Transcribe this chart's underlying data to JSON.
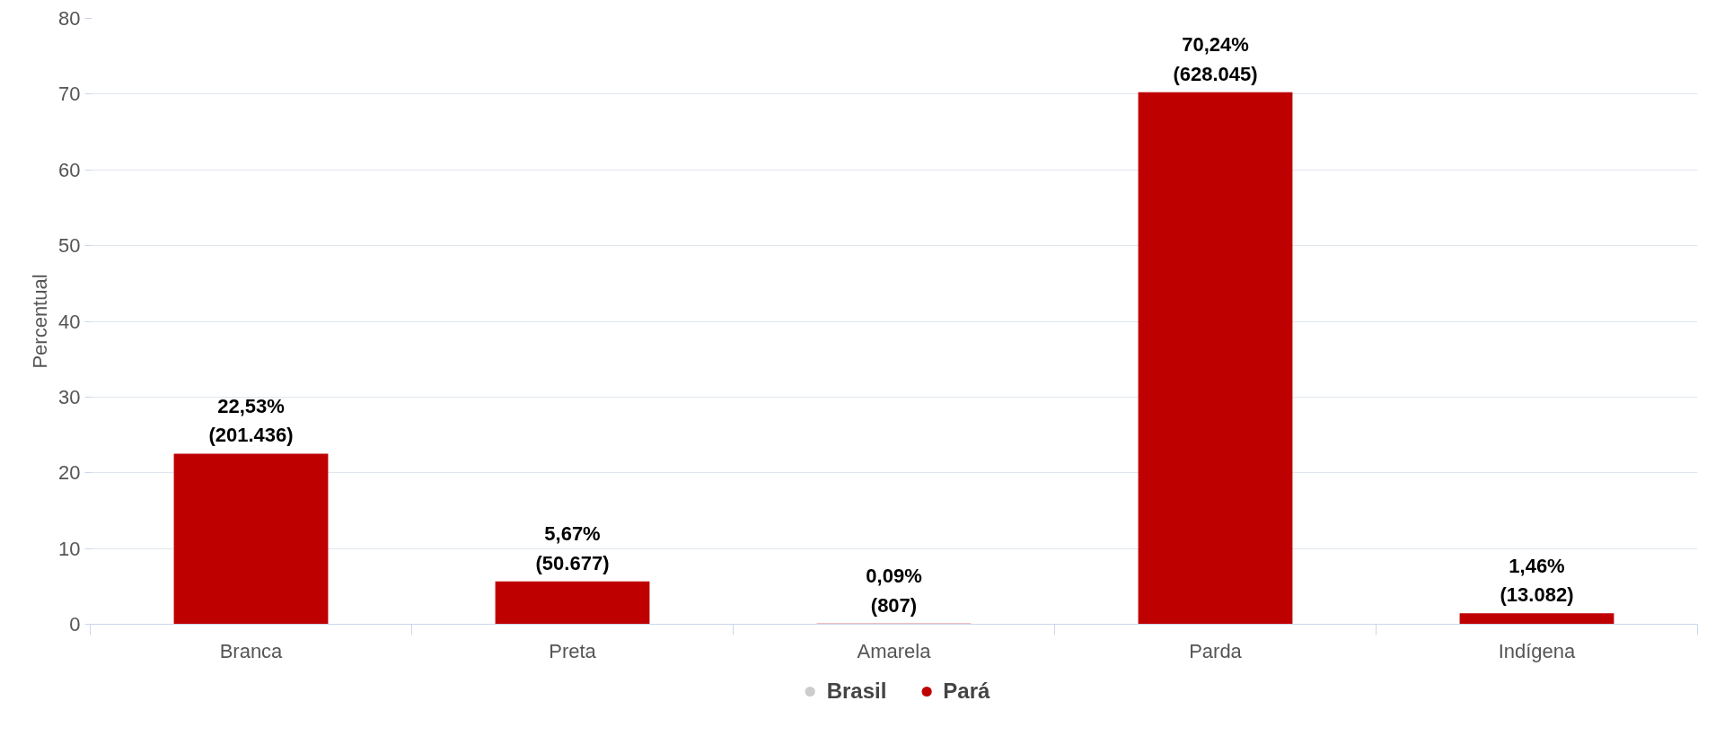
{
  "chart_data": {
    "type": "bar",
    "ylabel": "Percentual",
    "categories": [
      "Branca",
      "Preta",
      "Amarela",
      "Parda",
      "Indígena"
    ],
    "series": [
      {
        "name": "Brasil",
        "color": "#cccccc",
        "values": [
          null,
          null,
          null,
          null,
          null
        ]
      },
      {
        "name": "Pará",
        "color": "#bf0000",
        "values": [
          22.53,
          5.67,
          0.09,
          70.24,
          1.46
        ],
        "value_labels": [
          "22,53%\n(201.436)",
          "5,67%\n(50.677)",
          "0,09%\n(807)",
          "70,24%\n(628.045)",
          "1,46%\n(13.082)"
        ]
      }
    ],
    "ylim": [
      0,
      80
    ],
    "yticks": [
      0,
      10,
      20,
      30,
      40,
      50,
      60,
      70,
      80
    ],
    "grid": "y",
    "legend": "bottom"
  }
}
